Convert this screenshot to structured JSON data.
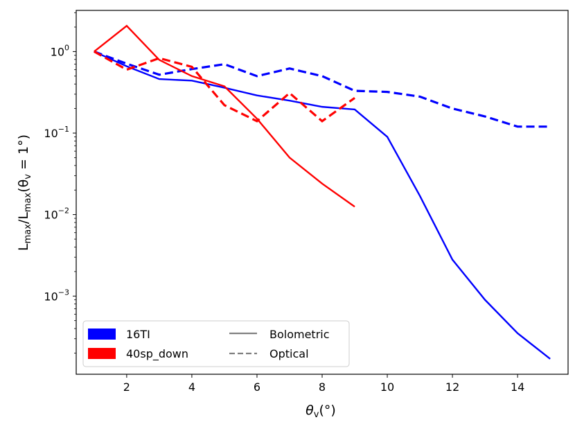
{
  "chart_data": {
    "type": "line",
    "title": "",
    "xlabel": {
      "main": "θ",
      "sub": "v",
      "tail": "(°)"
    },
    "ylabel": {
      "p1": "L",
      "s1": "max",
      "p2": "/L",
      "s2": "max",
      "p3": "(θ",
      "s3": "v",
      "p4": " = 1°)"
    },
    "xlim": [
      0.45,
      15.55
    ],
    "ylim": [
      0.00011,
      3.2
    ],
    "yscale": "log",
    "x_ticks": [
      2,
      4,
      6,
      8,
      10,
      12,
      14
    ],
    "x_tick_labels": [
      "2",
      "4",
      "6",
      "8",
      "10",
      "12",
      "14"
    ],
    "y_ticks": [
      {
        "value": 1,
        "base": "10",
        "exp": "0"
      },
      {
        "value": 0.1,
        "base": "10",
        "exp": "−1"
      },
      {
        "value": 0.01,
        "base": "10",
        "exp": "−2"
      },
      {
        "value": 0.001,
        "base": "10",
        "exp": "−3"
      }
    ],
    "series": [
      {
        "name": "16TI Bolometric",
        "model": "16TI",
        "band": "Bolometric",
        "color": "#0000ff",
        "dashed": false,
        "x": [
          1,
          2,
          3,
          4,
          5,
          6,
          7,
          8,
          9,
          10,
          11,
          12,
          13,
          14,
          15
        ],
        "y": [
          1.0,
          0.66,
          0.46,
          0.44,
          0.36,
          0.29,
          0.25,
          0.21,
          0.195,
          0.09,
          0.017,
          0.0028,
          0.0009,
          0.00035,
          0.00017
        ]
      },
      {
        "name": "16TI Optical",
        "model": "16TI",
        "band": "Optical",
        "color": "#0000ff",
        "dashed": true,
        "x": [
          1,
          2,
          3,
          4,
          5,
          6,
          7,
          8,
          9,
          10,
          11,
          12,
          13,
          14,
          15
        ],
        "y": [
          1.0,
          0.71,
          0.52,
          0.61,
          0.7,
          0.5,
          0.62,
          0.5,
          0.33,
          0.32,
          0.28,
          0.2,
          0.16,
          0.12,
          0.12
        ]
      },
      {
        "name": "40sp_down Bolometric",
        "model": "40sp_down",
        "band": "Bolometric",
        "color": "#ff0000",
        "dashed": false,
        "x": [
          1,
          2,
          3,
          4,
          5,
          6,
          7,
          8,
          9
        ],
        "y": [
          1.0,
          2.07,
          0.79,
          0.5,
          0.375,
          0.15,
          0.05,
          0.024,
          0.0125
        ]
      },
      {
        "name": "40sp_down Optical",
        "model": "40sp_down",
        "band": "Optical",
        "color": "#ff0000",
        "dashed": true,
        "x": [
          1,
          2,
          3,
          4,
          5,
          6,
          7,
          8,
          9
        ],
        "y": [
          1.0,
          0.6,
          0.83,
          0.65,
          0.22,
          0.14,
          0.31,
          0.14,
          0.27
        ]
      }
    ],
    "legend": {
      "position": "lower-left",
      "entries": [
        {
          "label": "16TI",
          "kind": "patch",
          "color": "#0000ff"
        },
        {
          "label": "40sp_down",
          "kind": "patch",
          "color": "#ff0000"
        },
        {
          "label": "Bolometric",
          "kind": "line",
          "color": "#808080",
          "dashed": false
        },
        {
          "label": "Optical",
          "kind": "line",
          "color": "#808080",
          "dashed": true
        }
      ]
    }
  }
}
